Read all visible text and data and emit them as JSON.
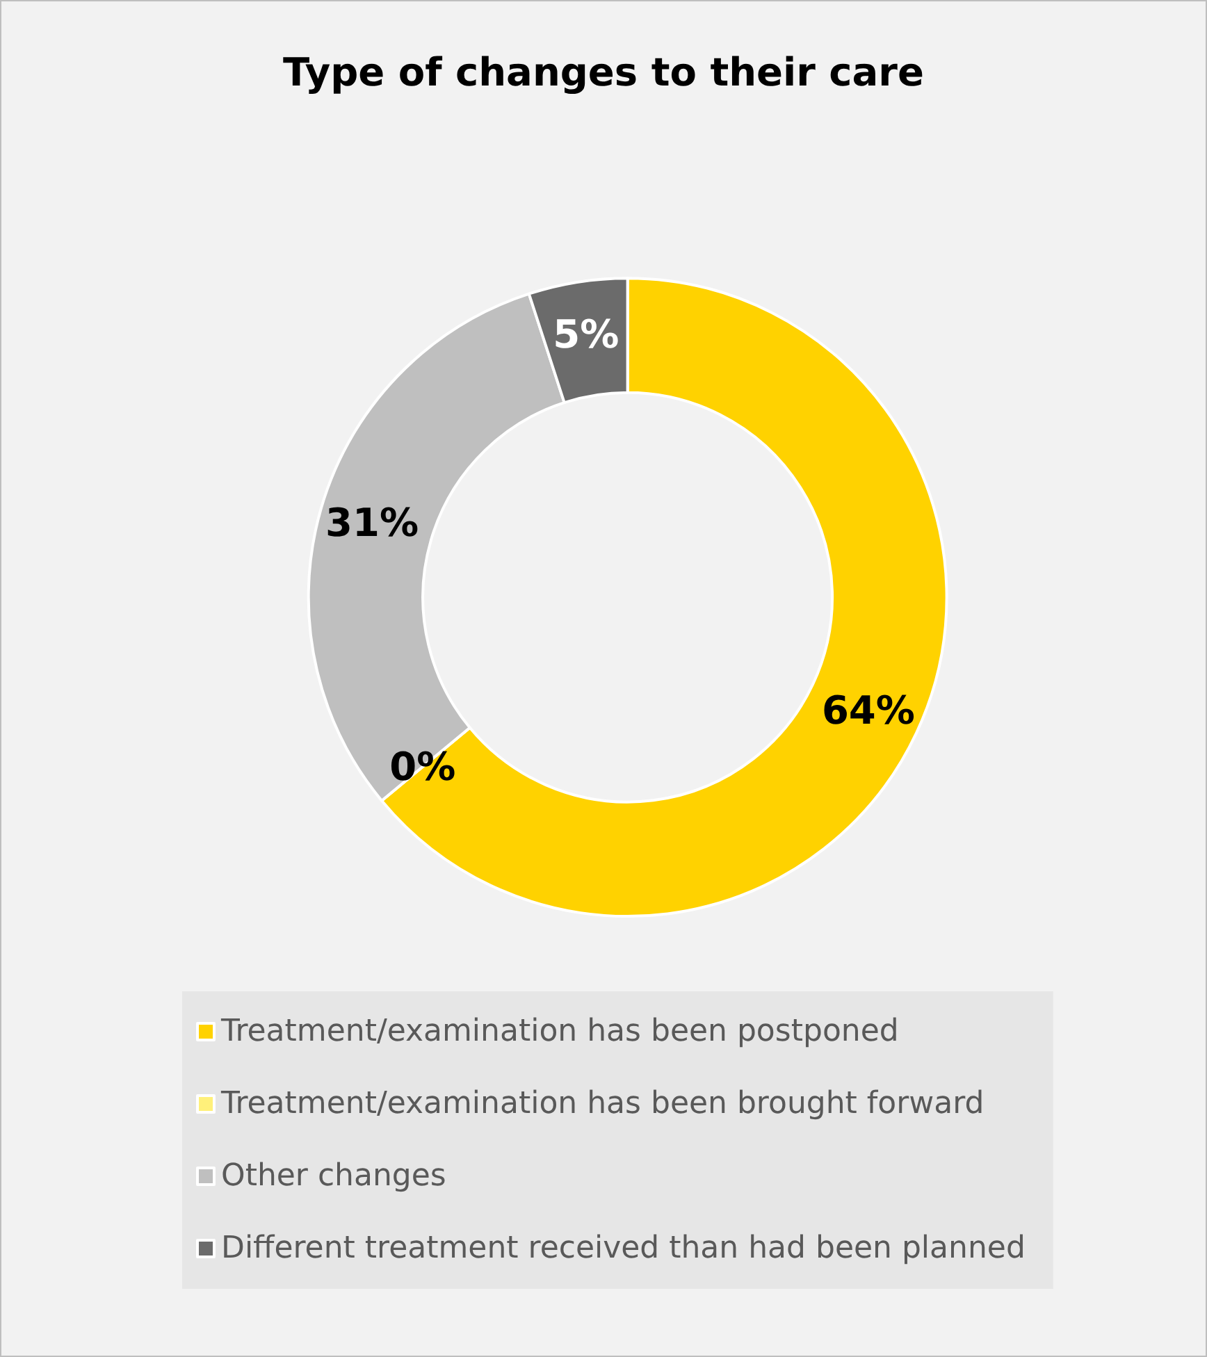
{
  "chart_data": {
    "type": "donut",
    "title": "Type of changes to their care",
    "categories": [
      "Treatment/examination has been postponed",
      "Treatment/examination has been brought forward",
      "Other changes",
      "Different treatment received than had been planned"
    ],
    "values": [
      64,
      0,
      31,
      5
    ],
    "colors": [
      "#ffd200",
      "#fff07a",
      "#bfbfbf",
      "#6b6b6b"
    ],
    "value_labels": [
      "64%",
      "0%",
      "31%",
      "5%"
    ],
    "legend": "bottom"
  }
}
